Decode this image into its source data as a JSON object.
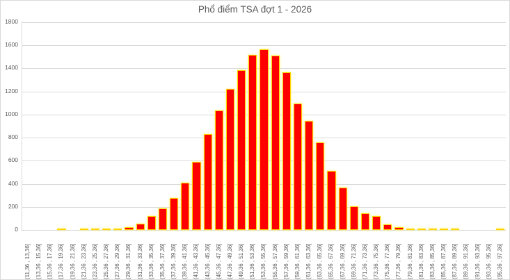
{
  "chart_data": {
    "type": "bar",
    "title": "Phổ điểm TSA đợt 1 - 2026",
    "xlabel": "",
    "ylabel": "",
    "ylim": [
      0,
      1800
    ],
    "yticks": [
      0,
      200,
      400,
      600,
      800,
      1000,
      1200,
      1400,
      1600,
      1800
    ],
    "grid": true,
    "legend": null,
    "colors": {
      "bar_fill": "#ff0000",
      "bar_border": "#ffd400",
      "grid": "#d9d9d9",
      "text": "#595959"
    },
    "categories": [
      "(11,36 , 13,36]",
      "(13,36 , 15,36]",
      "(15,36 , 17,36]",
      "(17,36 , 19,36]",
      "(19,36 , 21,36]",
      "(21,36 , 23,36]",
      "(23,36 , 25,36]",
      "(25,36 , 27,36]",
      "(27,36 , 29,36]",
      "(29,36 , 31,36]",
      "(31,36 , 33,36]",
      "(33,36 , 35,36]",
      "(35,36 , 37,36]",
      "(37,36 , 39,36]",
      "(39,36 , 41,36]",
      "(41,36 , 43,36]",
      "(43,36 , 45,36]",
      "(45,36 , 47,36]",
      "(47,36 , 49,36]",
      "(49,36 , 51,36]",
      "(51,36 , 53,36]",
      "(53,36 , 55,36]",
      "(55,36 , 57,36]",
      "(57,36 , 59,36]",
      "(59,36 , 61,36]",
      "(61,36 , 63,36]",
      "(63,36 , 65,36]",
      "(65,36 , 67,36]",
      "(67,36 , 69,36]",
      "(69,36 , 71,36]",
      "(71,36 , 73,36]",
      "(73,36 , 75,36]",
      "(75,36 , 77,36]",
      "(77,36 , 79,36]",
      "(79,36 , 81,36]",
      "(81,36 , 83,36]",
      "(83,36 , 85,36]",
      "(85,36 , 87,36]",
      "(87,36 , 89,36]",
      "(89,36 , 91,36]",
      "(91,36 , 93,36]",
      "(93,36 , 95,36]",
      "(95,36 , 97,36]"
    ],
    "values": [
      0,
      0,
      0,
      5,
      0,
      3,
      4,
      7,
      10,
      25,
      55,
      120,
      185,
      275,
      410,
      590,
      830,
      1035,
      1225,
      1385,
      1520,
      1565,
      1510,
      1365,
      1095,
      945,
      760,
      510,
      365,
      205,
      145,
      120,
      50,
      22,
      15,
      10,
      4,
      3,
      2,
      0,
      0,
      0,
      5
    ]
  }
}
